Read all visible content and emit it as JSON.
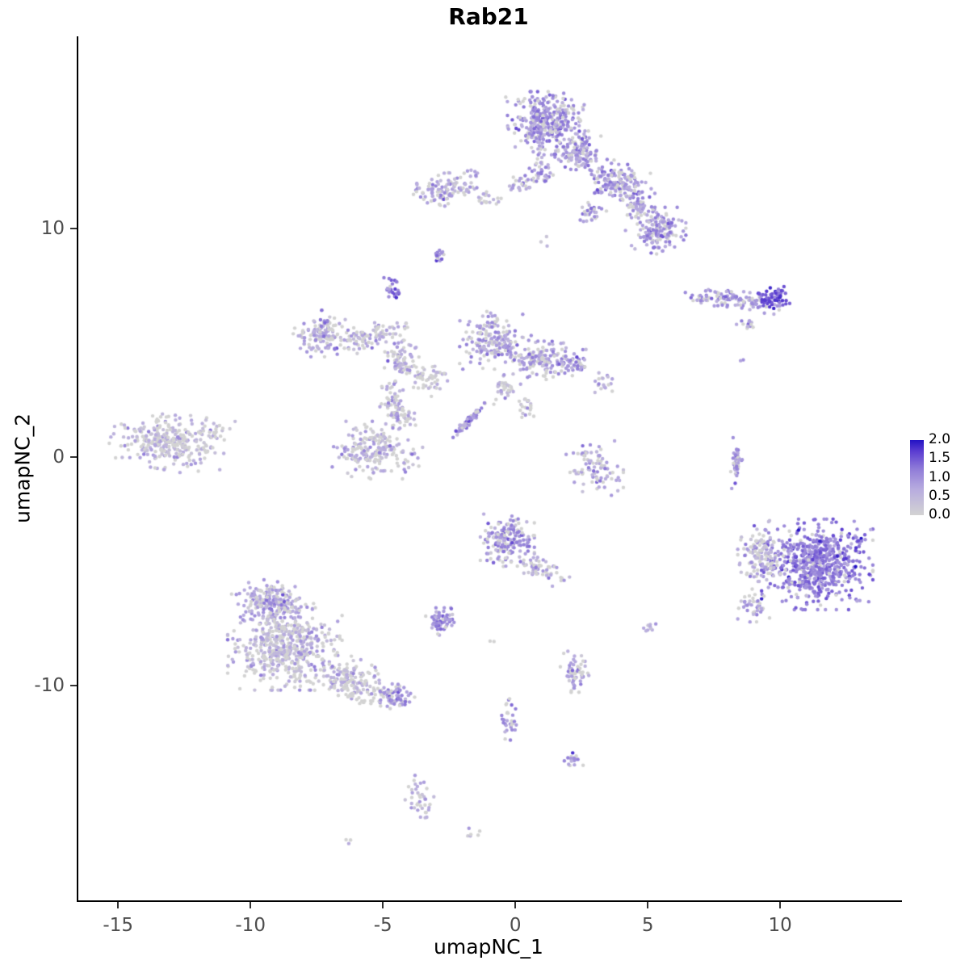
{
  "title": "Rab21",
  "axes": {
    "x": {
      "label": "umapNC_1",
      "ticks": [
        -15,
        -10,
        -5,
        0,
        5,
        10
      ]
    },
    "y": {
      "label": "umapNC_2",
      "ticks": [
        -10,
        0,
        10
      ]
    }
  },
  "legend": {
    "labels": [
      "2.0",
      "1.5",
      "1.0",
      "0.5",
      "0.0"
    ]
  },
  "colors": {
    "background": "#ffffff",
    "axis_line": "#000000",
    "tick_label": "#4d4d4d",
    "scale_low": "#d3d3d3",
    "scale_high": "#2313c4"
  },
  "chart_data": {
    "type": "scatter",
    "title": "Rab21",
    "xlabel": "umapNC_1",
    "ylabel": "umapNC_2",
    "xlim": [
      -16.5,
      14.6
    ],
    "ylim": [
      -19.4,
      18.4
    ],
    "grid": false,
    "legend_position": "right",
    "legend_values": [
      2.0,
      1.5,
      1.0,
      0.5,
      0.0
    ],
    "value_range": [
      0.0,
      2.0
    ],
    "point_size": 2.2,
    "expr_sd": 0.28,
    "seed": 42,
    "color_stops": [
      [
        0,
        "#d3d3d3"
      ],
      [
        0.35,
        "#b7abdf"
      ],
      [
        0.62,
        "#8f7bd8"
      ],
      [
        0.85,
        "#5b3dd1"
      ],
      [
        1,
        "#2313c4"
      ]
    ],
    "clusters": [
      {
        "cx": 1.2,
        "cy": 14.6,
        "rx": 1.3,
        "ry": 1.15,
        "rot": 0,
        "n": 380,
        "mean": 0.95,
        "zero": 0.22
      },
      {
        "cx": 2.4,
        "cy": 13.3,
        "rx": 0.8,
        "ry": 0.7,
        "rot": 0,
        "n": 120,
        "mean": 0.9,
        "zero": 0.25
      },
      {
        "cx": 3.9,
        "cy": 12.0,
        "rx": 1.2,
        "ry": 0.75,
        "rot": -25,
        "n": 170,
        "mean": 0.95,
        "zero": 0.22
      },
      {
        "cx": 5.3,
        "cy": 9.9,
        "rx": 0.95,
        "ry": 0.85,
        "rot": 0,
        "n": 150,
        "mean": 0.95,
        "zero": 0.22
      },
      {
        "cx": 4.6,
        "cy": 10.9,
        "rx": 0.5,
        "ry": 0.5,
        "rot": 0,
        "n": 40,
        "mean": 0.8,
        "zero": 0.3
      },
      {
        "cx": -2.6,
        "cy": 11.7,
        "rx": 1.05,
        "ry": 0.6,
        "rot": 5,
        "n": 110,
        "mean": 0.85,
        "zero": 0.3
      },
      {
        "cx": -1.7,
        "cy": 12.5,
        "rx": 0.3,
        "ry": 0.2,
        "rot": 0,
        "n": 4,
        "mean": 0.7,
        "zero": 0.3
      },
      {
        "cx": -1.0,
        "cy": 11.3,
        "rx": 0.5,
        "ry": 0.3,
        "rot": 0,
        "n": 18,
        "mean": 0.6,
        "zero": 0.4
      },
      {
        "cx": 0.2,
        "cy": 11.9,
        "rx": 0.45,
        "ry": 0.45,
        "rot": 0,
        "n": 25,
        "mean": 0.8,
        "zero": 0.3
      },
      {
        "cx": 1.0,
        "cy": 12.6,
        "rx": 0.4,
        "ry": 0.8,
        "rot": 0,
        "n": 40,
        "mean": 0.85,
        "zero": 0.25
      },
      {
        "cx": 2.9,
        "cy": 10.6,
        "rx": 0.45,
        "ry": 0.45,
        "rot": 0,
        "n": 30,
        "mean": 0.9,
        "zero": 0.25
      },
      {
        "cx": 1.1,
        "cy": 9.4,
        "rx": 0.3,
        "ry": 0.2,
        "rot": 0,
        "n": 3,
        "mean": 0.4,
        "zero": 0.5
      },
      {
        "cx": -2.9,
        "cy": 8.8,
        "rx": 0.22,
        "ry": 0.4,
        "rot": 0,
        "n": 16,
        "mean": 1.1,
        "zero": 0.1
      },
      {
        "cx": -4.6,
        "cy": 7.3,
        "rx": 0.3,
        "ry": 0.45,
        "rot": 0,
        "n": 26,
        "mean": 1.2,
        "zero": 0.1
      },
      {
        "cx": 8.2,
        "cy": 6.9,
        "rx": 1.5,
        "ry": 0.42,
        "rot": -6,
        "n": 110,
        "mean": 0.9,
        "zero": 0.25
      },
      {
        "cx": 9.7,
        "cy": 6.95,
        "rx": 0.55,
        "ry": 0.45,
        "rot": 0,
        "n": 60,
        "mean": 1.5,
        "zero": 0.05
      },
      {
        "cx": 7.0,
        "cy": 6.9,
        "rx": 0.3,
        "ry": 0.25,
        "rot": 0,
        "n": 10,
        "mean": 0.7,
        "zero": 0.3
      },
      {
        "cx": 8.8,
        "cy": 5.8,
        "rx": 0.35,
        "ry": 0.3,
        "rot": 20,
        "n": 14,
        "mean": 0.9,
        "zero": 0.2
      },
      {
        "cx": 8.6,
        "cy": 4.3,
        "rx": 0.1,
        "ry": 0.1,
        "rot": 0,
        "n": 2,
        "mean": 1.2,
        "zero": 0
      },
      {
        "cx": -7.3,
        "cy": 5.4,
        "rx": 1.0,
        "ry": 0.85,
        "rot": 0,
        "n": 140,
        "mean": 0.75,
        "zero": 0.35
      },
      {
        "cx": -5.4,
        "cy": 5.3,
        "rx": 1.15,
        "ry": 0.5,
        "rot": 15,
        "n": 90,
        "mean": 0.65,
        "zero": 0.4
      },
      {
        "cx": -4.3,
        "cy": 4.3,
        "rx": 0.55,
        "ry": 0.85,
        "rot": 0,
        "n": 80,
        "mean": 0.75,
        "zero": 0.35
      },
      {
        "cx": -4.6,
        "cy": 2.4,
        "rx": 0.45,
        "ry": 1.0,
        "rot": 10,
        "n": 60,
        "mean": 0.65,
        "zero": 0.4
      },
      {
        "cx": -3.3,
        "cy": 3.4,
        "rx": 0.7,
        "ry": 0.55,
        "rot": -20,
        "n": 50,
        "mean": 0.6,
        "zero": 0.45
      },
      {
        "cx": -0.9,
        "cy": 5.1,
        "rx": 1.0,
        "ry": 1.05,
        "rot": 0,
        "n": 180,
        "mean": 0.85,
        "zero": 0.3
      },
      {
        "cx": 0.9,
        "cy": 4.3,
        "rx": 1.1,
        "ry": 0.75,
        "rot": -15,
        "n": 140,
        "mean": 0.85,
        "zero": 0.3
      },
      {
        "cx": 2.2,
        "cy": 4.1,
        "rx": 0.5,
        "ry": 0.5,
        "rot": 0,
        "n": 50,
        "mean": 0.9,
        "zero": 0.3
      },
      {
        "cx": 3.4,
        "cy": 3.2,
        "rx": 0.4,
        "ry": 0.4,
        "rot": 0,
        "n": 18,
        "mean": 0.7,
        "zero": 0.35
      },
      {
        "cx": -0.4,
        "cy": 3.0,
        "rx": 0.5,
        "ry": 0.6,
        "rot": 0,
        "n": 35,
        "mean": 0.6,
        "zero": 0.45
      },
      {
        "cx": 0.5,
        "cy": 2.2,
        "rx": 0.4,
        "ry": 0.5,
        "rot": 0,
        "n": 20,
        "mean": 0.5,
        "zero": 0.5
      },
      {
        "cx": -1.75,
        "cy": 1.6,
        "rx": 0.8,
        "ry": 0.12,
        "rot": 50,
        "n": 70,
        "mean": 1.0,
        "zero": 0.1
      },
      {
        "cx": -13.1,
        "cy": 0.7,
        "rx": 1.8,
        "ry": 1.05,
        "rot": -12,
        "n": 300,
        "mean": 0.55,
        "zero": 0.45
      },
      {
        "cx": -11.3,
        "cy": 1.2,
        "rx": 0.6,
        "ry": 0.5,
        "rot": 0,
        "n": 25,
        "mean": 0.5,
        "zero": 0.5
      },
      {
        "cx": -5.3,
        "cy": 0.3,
        "rx": 1.5,
        "ry": 1.05,
        "rot": 0,
        "n": 210,
        "mean": 0.65,
        "zero": 0.4
      },
      {
        "cx": -4.2,
        "cy": 1.7,
        "rx": 0.5,
        "ry": 0.4,
        "rot": 0,
        "n": 30,
        "mean": 0.6,
        "zero": 0.4
      },
      {
        "cx": 3.0,
        "cy": -0.5,
        "rx": 0.9,
        "ry": 1.0,
        "rot": 0,
        "n": 90,
        "mean": 0.75,
        "zero": 0.35
      },
      {
        "cx": 8.35,
        "cy": -0.3,
        "rx": 0.18,
        "ry": 0.95,
        "rot": 0,
        "n": 45,
        "mean": 0.9,
        "zero": 0.25
      },
      {
        "cx": 11.4,
        "cy": -4.7,
        "rx": 1.75,
        "ry": 1.65,
        "rot": 0,
        "n": 650,
        "mean": 1.2,
        "zero": 0.07
      },
      {
        "cx": 9.3,
        "cy": -4.3,
        "rx": 0.75,
        "ry": 1.3,
        "rot": 0,
        "n": 130,
        "mean": 0.6,
        "zero": 0.35
      },
      {
        "cx": 9.0,
        "cy": -6.5,
        "rx": 0.5,
        "ry": 0.6,
        "rot": 0,
        "n": 40,
        "mean": 0.7,
        "zero": 0.3
      },
      {
        "cx": -0.3,
        "cy": -3.7,
        "rx": 0.85,
        "ry": 1.0,
        "rot": 0,
        "n": 170,
        "mean": 0.95,
        "zero": 0.2
      },
      {
        "cx": 0.9,
        "cy": -4.9,
        "rx": 1.0,
        "ry": 0.45,
        "rot": -20,
        "n": 60,
        "mean": 0.75,
        "zero": 0.3
      },
      {
        "cx": -2.8,
        "cy": -7.2,
        "rx": 0.5,
        "ry": 0.5,
        "rot": 0,
        "n": 70,
        "mean": 0.95,
        "zero": 0.15
      },
      {
        "cx": 5.0,
        "cy": -7.4,
        "rx": 0.3,
        "ry": 0.3,
        "rot": 0,
        "n": 9,
        "mean": 0.6,
        "zero": 0.4
      },
      {
        "cx": -0.9,
        "cy": -7.9,
        "rx": 0.2,
        "ry": 0.15,
        "rot": 0,
        "n": 2,
        "mean": 0.3,
        "zero": 0.5
      },
      {
        "cx": -9.2,
        "cy": -6.4,
        "rx": 1.3,
        "ry": 0.8,
        "rot": -10,
        "n": 230,
        "mean": 0.8,
        "zero": 0.3
      },
      {
        "cx": -8.7,
        "cy": -8.4,
        "rx": 1.8,
        "ry": 1.5,
        "rot": 0,
        "n": 520,
        "mean": 0.6,
        "zero": 0.4
      },
      {
        "cx": -6.2,
        "cy": -9.8,
        "rx": 1.5,
        "ry": 0.85,
        "rot": -20,
        "n": 180,
        "mean": 0.55,
        "zero": 0.45
      },
      {
        "cx": -4.5,
        "cy": -10.5,
        "rx": 0.55,
        "ry": 0.45,
        "rot": -20,
        "n": 60,
        "mean": 0.95,
        "zero": 0.15
      },
      {
        "cx": 2.3,
        "cy": -9.4,
        "rx": 0.5,
        "ry": 0.75,
        "rot": 0,
        "n": 60,
        "mean": 0.75,
        "zero": 0.3
      },
      {
        "cx": -0.2,
        "cy": -11.6,
        "rx": 0.3,
        "ry": 0.85,
        "rot": 0,
        "n": 30,
        "mean": 0.85,
        "zero": 0.25
      },
      {
        "cx": 2.2,
        "cy": -13.2,
        "rx": 0.3,
        "ry": 0.4,
        "rot": 0,
        "n": 18,
        "mean": 0.9,
        "zero": 0.2
      },
      {
        "cx": -3.6,
        "cy": -15.0,
        "rx": 0.45,
        "ry": 0.9,
        "rot": 15,
        "n": 40,
        "mean": 0.6,
        "zero": 0.4
      },
      {
        "cx": -1.6,
        "cy": -16.4,
        "rx": 0.3,
        "ry": 0.25,
        "rot": 0,
        "n": 6,
        "mean": 0.5,
        "zero": 0.4
      },
      {
        "cx": -6.3,
        "cy": -16.8,
        "rx": 0.15,
        "ry": 0.15,
        "rot": 0,
        "n": 3,
        "mean": 0.8,
        "zero": 0.3
      }
    ]
  }
}
